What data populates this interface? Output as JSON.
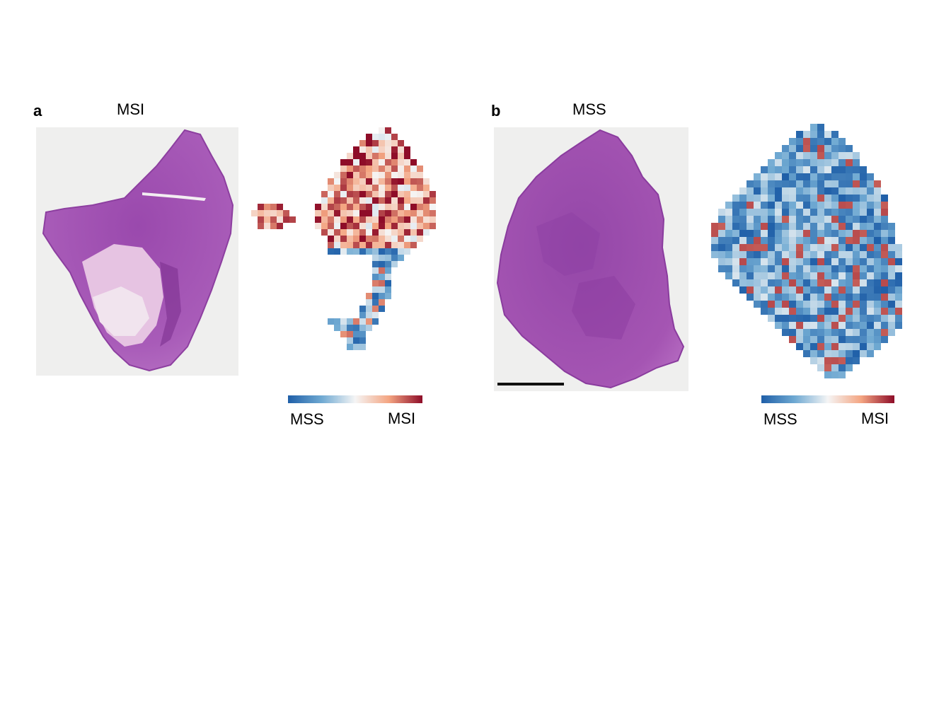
{
  "panels": [
    {
      "letter": "a",
      "title": "MSI",
      "colorbar": {
        "low_label": "MSS",
        "high_label": "MSI"
      }
    },
    {
      "letter": "b",
      "title": "MSS",
      "colorbar": {
        "low_label": "MSS",
        "high_label": "MSI"
      }
    }
  ],
  "colors": {
    "mss_dark": "#1f5fa8",
    "mss_light": "#bcd6ea",
    "neutral": "#f5f5f5",
    "msi_light": "#f4b49a",
    "msi_dark": "#9e0f2c",
    "tissue": "#a755b4",
    "slide_bg": "#efefee"
  }
}
